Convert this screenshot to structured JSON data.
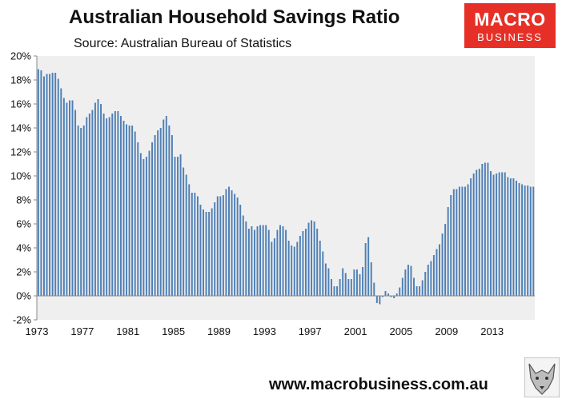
{
  "header": {
    "title": "Australian Household Savings Ratio",
    "subtitle": "Source: Australian Bureau of Statistics"
  },
  "logo": {
    "line1": "MACRO",
    "line2": "BUSINESS",
    "color": "#e63027"
  },
  "footer": {
    "url": "www.macrobusiness.com.au"
  },
  "wolf_icon": "wolf-icon",
  "chart_data": {
    "type": "bar",
    "title": "Australian Household Savings Ratio",
    "subtitle": "Source: Australian Bureau of Statistics",
    "xlabel": "",
    "ylabel": "",
    "frequency": "quarterly",
    "start": "1973-Q3",
    "ylim": [
      -2,
      20
    ],
    "y_ticks": [
      "-2%",
      "0%",
      "2%",
      "4%",
      "6%",
      "8%",
      "10%",
      "12%",
      "14%",
      "16%",
      "18%",
      "20%"
    ],
    "x_ticks": [
      "1973",
      "1977",
      "1981",
      "1985",
      "1989",
      "1993",
      "1997",
      "2001",
      "2005",
      "2009",
      "2013"
    ],
    "grid": false,
    "legend": "none",
    "bar_color": "#4f7fb5",
    "plot_background": "#efefef",
    "values": [
      18.9,
      18.8,
      18.3,
      18.5,
      18.5,
      18.6,
      18.6,
      18.1,
      17.3,
      16.5,
      16.1,
      16.3,
      16.3,
      15.5,
      14.2,
      14.0,
      14.2,
      14.9,
      15.2,
      15.5,
      16.1,
      16.4,
      16.0,
      15.2,
      14.8,
      14.9,
      15.2,
      15.4,
      15.4,
      15.0,
      14.6,
      14.3,
      14.2,
      14.2,
      13.7,
      12.8,
      11.9,
      11.4,
      11.6,
      12.1,
      12.8,
      13.4,
      13.8,
      14.0,
      14.7,
      15.0,
      14.2,
      13.4,
      11.6,
      11.6,
      11.8,
      10.7,
      10.1,
      9.3,
      8.6,
      8.6,
      8.3,
      7.6,
      7.2,
      7.0,
      7.0,
      7.3,
      7.8,
      8.3,
      8.3,
      8.4,
      8.9,
      9.1,
      8.8,
      8.5,
      8.2,
      7.6,
      6.7,
      6.2,
      5.6,
      5.8,
      5.5,
      5.8,
      5.9,
      5.9,
      5.9,
      5.5,
      4.5,
      4.8,
      5.5,
      5.9,
      5.8,
      5.5,
      4.6,
      4.2,
      4.1,
      4.5,
      5.0,
      5.4,
      5.6,
      6.1,
      6.3,
      6.2,
      5.6,
      4.6,
      3.7,
      2.7,
      2.3,
      1.4,
      0.8,
      0.8,
      1.4,
      2.3,
      1.9,
      1.4,
      1.4,
      2.2,
      2.2,
      1.8,
      2.4,
      4.4,
      4.9,
      2.8,
      1.1,
      -0.6,
      -0.7,
      -0.1,
      0.4,
      0.2,
      -0.1,
      -0.2,
      0.2,
      0.7,
      1.5,
      2.2,
      2.6,
      2.5,
      1.5,
      0.8,
      0.8,
      1.3,
      2.0,
      2.6,
      2.9,
      3.4,
      3.9,
      4.3,
      5.2,
      6.0,
      7.4,
      8.4,
      8.9,
      8.9,
      9.1,
      9.1,
      9.1,
      9.3,
      9.8,
      10.2,
      10.5,
      10.6,
      11.0,
      11.1,
      11.1,
      10.4,
      10.1,
      10.2,
      10.3,
      10.3,
      10.3,
      9.9,
      9.8,
      9.8,
      9.6,
      9.4,
      9.3,
      9.2,
      9.2,
      9.1,
      9.1
    ]
  }
}
